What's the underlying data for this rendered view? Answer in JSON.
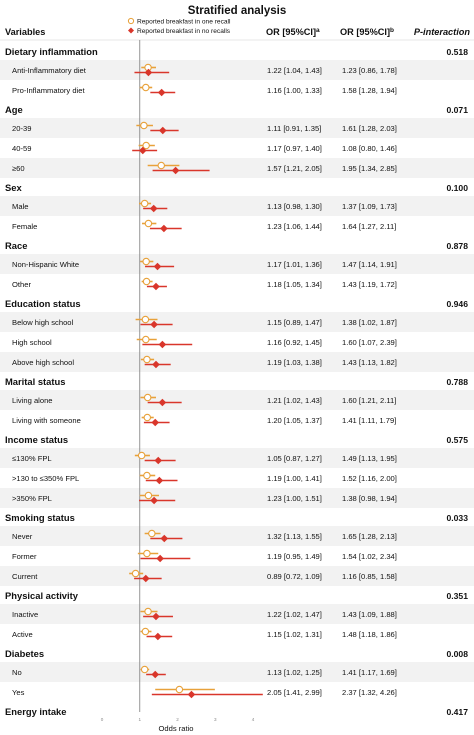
{
  "title": "Stratified analysis",
  "colors": {
    "one_recall": "#E8A13A",
    "no_recalls": "#D9362B",
    "reference_line": "#8a8a8a",
    "row_band": "#f2f2f2"
  },
  "headers": {
    "variables": "Variables",
    "or_a": "OR [95%CI]",
    "or_a_sup": "a",
    "or_b": "OR [95%CI]",
    "or_b_sup": "b",
    "p": "P-interaction"
  },
  "legend": [
    {
      "label": "Reported breakfast in one recall",
      "marker": "open-circle",
      "color": "#E8A13A"
    },
    {
      "label": "Reported breakfast in no recalls",
      "marker": "diamond",
      "color": "#D9362B"
    }
  ],
  "chart_data": {
    "type": "forest",
    "x_label": "Odds ratio",
    "x_ticks": [
      "0",
      "1",
      "2",
      "3",
      "4"
    ],
    "x_range": [
      0,
      4
    ],
    "reference_value": 1,
    "series": [
      {
        "name": "Reported breakfast in one recall",
        "key": "a"
      },
      {
        "name": "Reported breakfast in no recalls",
        "key": "b"
      }
    ],
    "groups": [
      {
        "name": "Dietary inflammation",
        "p_interaction": "0.518",
        "rows": [
          {
            "label": "Anti-Inflammatory diet",
            "a_text": "1.22 [1.04, 1.43]",
            "b_text": "1.23 [0.86, 1.78]",
            "a": [
              1.22,
              1.04,
              1.43
            ],
            "b": [
              1.23,
              0.86,
              1.78
            ]
          },
          {
            "label": "Pro-Inflammatory diet",
            "a_text": "1.16 [1.00, 1.33]",
            "b_text": "1.58 [1.28, 1.94]",
            "a": [
              1.16,
              1.0,
              1.33
            ],
            "b": [
              1.58,
              1.28,
              1.94
            ]
          }
        ]
      },
      {
        "name": "Age",
        "p_interaction": "0.071",
        "rows": [
          {
            "label": "20-39",
            "a_text": "1.11 [0.91, 1.35]",
            "b_text": "1.61 [1.28, 2.03]",
            "a": [
              1.11,
              0.91,
              1.35
            ],
            "b": [
              1.61,
              1.28,
              2.03
            ]
          },
          {
            "label": "40-59",
            "a_text": "1.17 [0.97, 1.40]",
            "b_text": "1.08 [0.80, 1.46]",
            "a": [
              1.17,
              0.97,
              1.4
            ],
            "b": [
              1.08,
              0.8,
              1.46
            ]
          },
          {
            "label": "≥60",
            "a_text": "1.57 [1.21, 2.05]",
            "b_text": "1.95 [1.34, 2.85]",
            "a": [
              1.57,
              1.21,
              2.05
            ],
            "b": [
              1.95,
              1.34,
              2.85
            ]
          }
        ]
      },
      {
        "name": "Sex",
        "p_interaction": "0.100",
        "rows": [
          {
            "label": "Male",
            "a_text": "1.13 [0.98, 1.30]",
            "b_text": "1.37 [1.09, 1.73]",
            "a": [
              1.13,
              0.98,
              1.3
            ],
            "b": [
              1.37,
              1.09,
              1.73
            ]
          },
          {
            "label": "Female",
            "a_text": "1.23 [1.06, 1.44]",
            "b_text": "1.64 [1.27, 2.11]",
            "a": [
              1.23,
              1.06,
              1.44
            ],
            "b": [
              1.64,
              1.27,
              2.11
            ]
          }
        ]
      },
      {
        "name": "Race",
        "p_interaction": "0.878",
        "rows": [
          {
            "label": "Non-Hispanic White",
            "a_text": "1.17 [1.01, 1.36]",
            "b_text": "1.47 [1.14, 1.91]",
            "a": [
              1.17,
              1.01,
              1.36
            ],
            "b": [
              1.47,
              1.14,
              1.91
            ]
          },
          {
            "label": "Other",
            "a_text": "1.18 [1.05, 1.34]",
            "b_text": "1.43 [1.19, 1.72]",
            "a": [
              1.18,
              1.05,
              1.34
            ],
            "b": [
              1.43,
              1.19,
              1.72
            ]
          }
        ]
      },
      {
        "name": "Education status",
        "p_interaction": "0.946",
        "rows": [
          {
            "label": "Below high school",
            "a_text": "1.15 [0.89, 1.47]",
            "b_text": "1.38 [1.02, 1.87]",
            "a": [
              1.15,
              0.89,
              1.47
            ],
            "b": [
              1.38,
              1.02,
              1.87
            ]
          },
          {
            "label": "High school",
            "a_text": "1.16 [0.92, 1.45]",
            "b_text": "1.60 [1.07, 2.39]",
            "a": [
              1.16,
              0.92,
              1.45
            ],
            "b": [
              1.6,
              1.07,
              2.39
            ]
          },
          {
            "label": "Above high school",
            "a_text": "1.19 [1.03, 1.38]",
            "b_text": "1.43 [1.13, 1.82]",
            "a": [
              1.19,
              1.03,
              1.38
            ],
            "b": [
              1.43,
              1.13,
              1.82
            ]
          }
        ]
      },
      {
        "name": "Marital status",
        "p_interaction": "0.788",
        "rows": [
          {
            "label": "Living alone",
            "a_text": "1.21 [1.02, 1.43]",
            "b_text": "1.60 [1.21, 2.11]",
            "a": [
              1.21,
              1.02,
              1.43
            ],
            "b": [
              1.6,
              1.21,
              2.11
            ]
          },
          {
            "label": "Living with someone",
            "a_text": "1.20 [1.05, 1.37]",
            "b_text": "1.41 [1.11, 1.79]",
            "a": [
              1.2,
              1.05,
              1.37
            ],
            "b": [
              1.41,
              1.11,
              1.79
            ]
          }
        ]
      },
      {
        "name": "Income status",
        "p_interaction": "0.575",
        "rows": [
          {
            "label": "≤130% FPL",
            "a_text": "1.05 [0.87, 1.27]",
            "b_text": "1.49 [1.13, 1.95]",
            "a": [
              1.05,
              0.87,
              1.27
            ],
            "b": [
              1.49,
              1.13,
              1.95
            ]
          },
          {
            "label": ">130 to ≤350% FPL",
            "a_text": "1.19 [1.00, 1.41]",
            "b_text": "1.52 [1.16, 2.00]",
            "a": [
              1.19,
              1.0,
              1.41
            ],
            "b": [
              1.52,
              1.16,
              2.0
            ]
          },
          {
            "label": ">350% FPL",
            "a_text": "1.23 [1.00, 1.51]",
            "b_text": "1.38 [0.98, 1.94]",
            "a": [
              1.23,
              1.0,
              1.51
            ],
            "b": [
              1.38,
              0.98,
              1.94
            ]
          }
        ]
      },
      {
        "name": "Smoking status",
        "p_interaction": "0.033",
        "rows": [
          {
            "label": "Never",
            "a_text": "1.32 [1.13, 1.55]",
            "b_text": "1.65 [1.28, 2.13]",
            "a": [
              1.32,
              1.13,
              1.55
            ],
            "b": [
              1.65,
              1.28,
              2.13
            ]
          },
          {
            "label": "Former",
            "a_text": "1.19 [0.95, 1.49]",
            "b_text": "1.54 [1.02, 2.34]",
            "a": [
              1.19,
              0.95,
              1.49
            ],
            "b": [
              1.54,
              1.02,
              2.34
            ]
          },
          {
            "label": "Current",
            "a_text": "0.89 [0.72, 1.09]",
            "b_text": "1.16 [0.85, 1.58]",
            "a": [
              0.89,
              0.72,
              1.09
            ],
            "b": [
              1.16,
              0.85,
              1.58
            ]
          }
        ]
      },
      {
        "name": "Physical activity",
        "p_interaction": "0.351",
        "rows": [
          {
            "label": "Inactive",
            "a_text": "1.22 [1.02, 1.47]",
            "b_text": "1.43 [1.09, 1.88]",
            "a": [
              1.22,
              1.02,
              1.47
            ],
            "b": [
              1.43,
              1.09,
              1.88
            ]
          },
          {
            "label": "Active",
            "a_text": "1.15 [1.02, 1.31]",
            "b_text": "1.48 [1.18, 1.86]",
            "a": [
              1.15,
              1.02,
              1.31
            ],
            "b": [
              1.48,
              1.18,
              1.86
            ]
          }
        ]
      },
      {
        "name": "Diabetes",
        "p_interaction": "0.008",
        "rows": [
          {
            "label": "No",
            "a_text": "1.13 [1.02, 1.25]",
            "b_text": "1.41 [1.17, 1.69]",
            "a": [
              1.13,
              1.02,
              1.25
            ],
            "b": [
              1.41,
              1.17,
              1.69
            ]
          },
          {
            "label": "Yes",
            "a_text": "2.05 [1.41, 2.99]",
            "b_text": "2.37 [1.32, 4.26]",
            "a": [
              2.05,
              1.41,
              2.99
            ],
            "b": [
              2.37,
              1.32,
              4.26
            ]
          }
        ]
      },
      {
        "name": "Energy intake",
        "p_interaction": "0.417",
        "rows": []
      }
    ]
  }
}
